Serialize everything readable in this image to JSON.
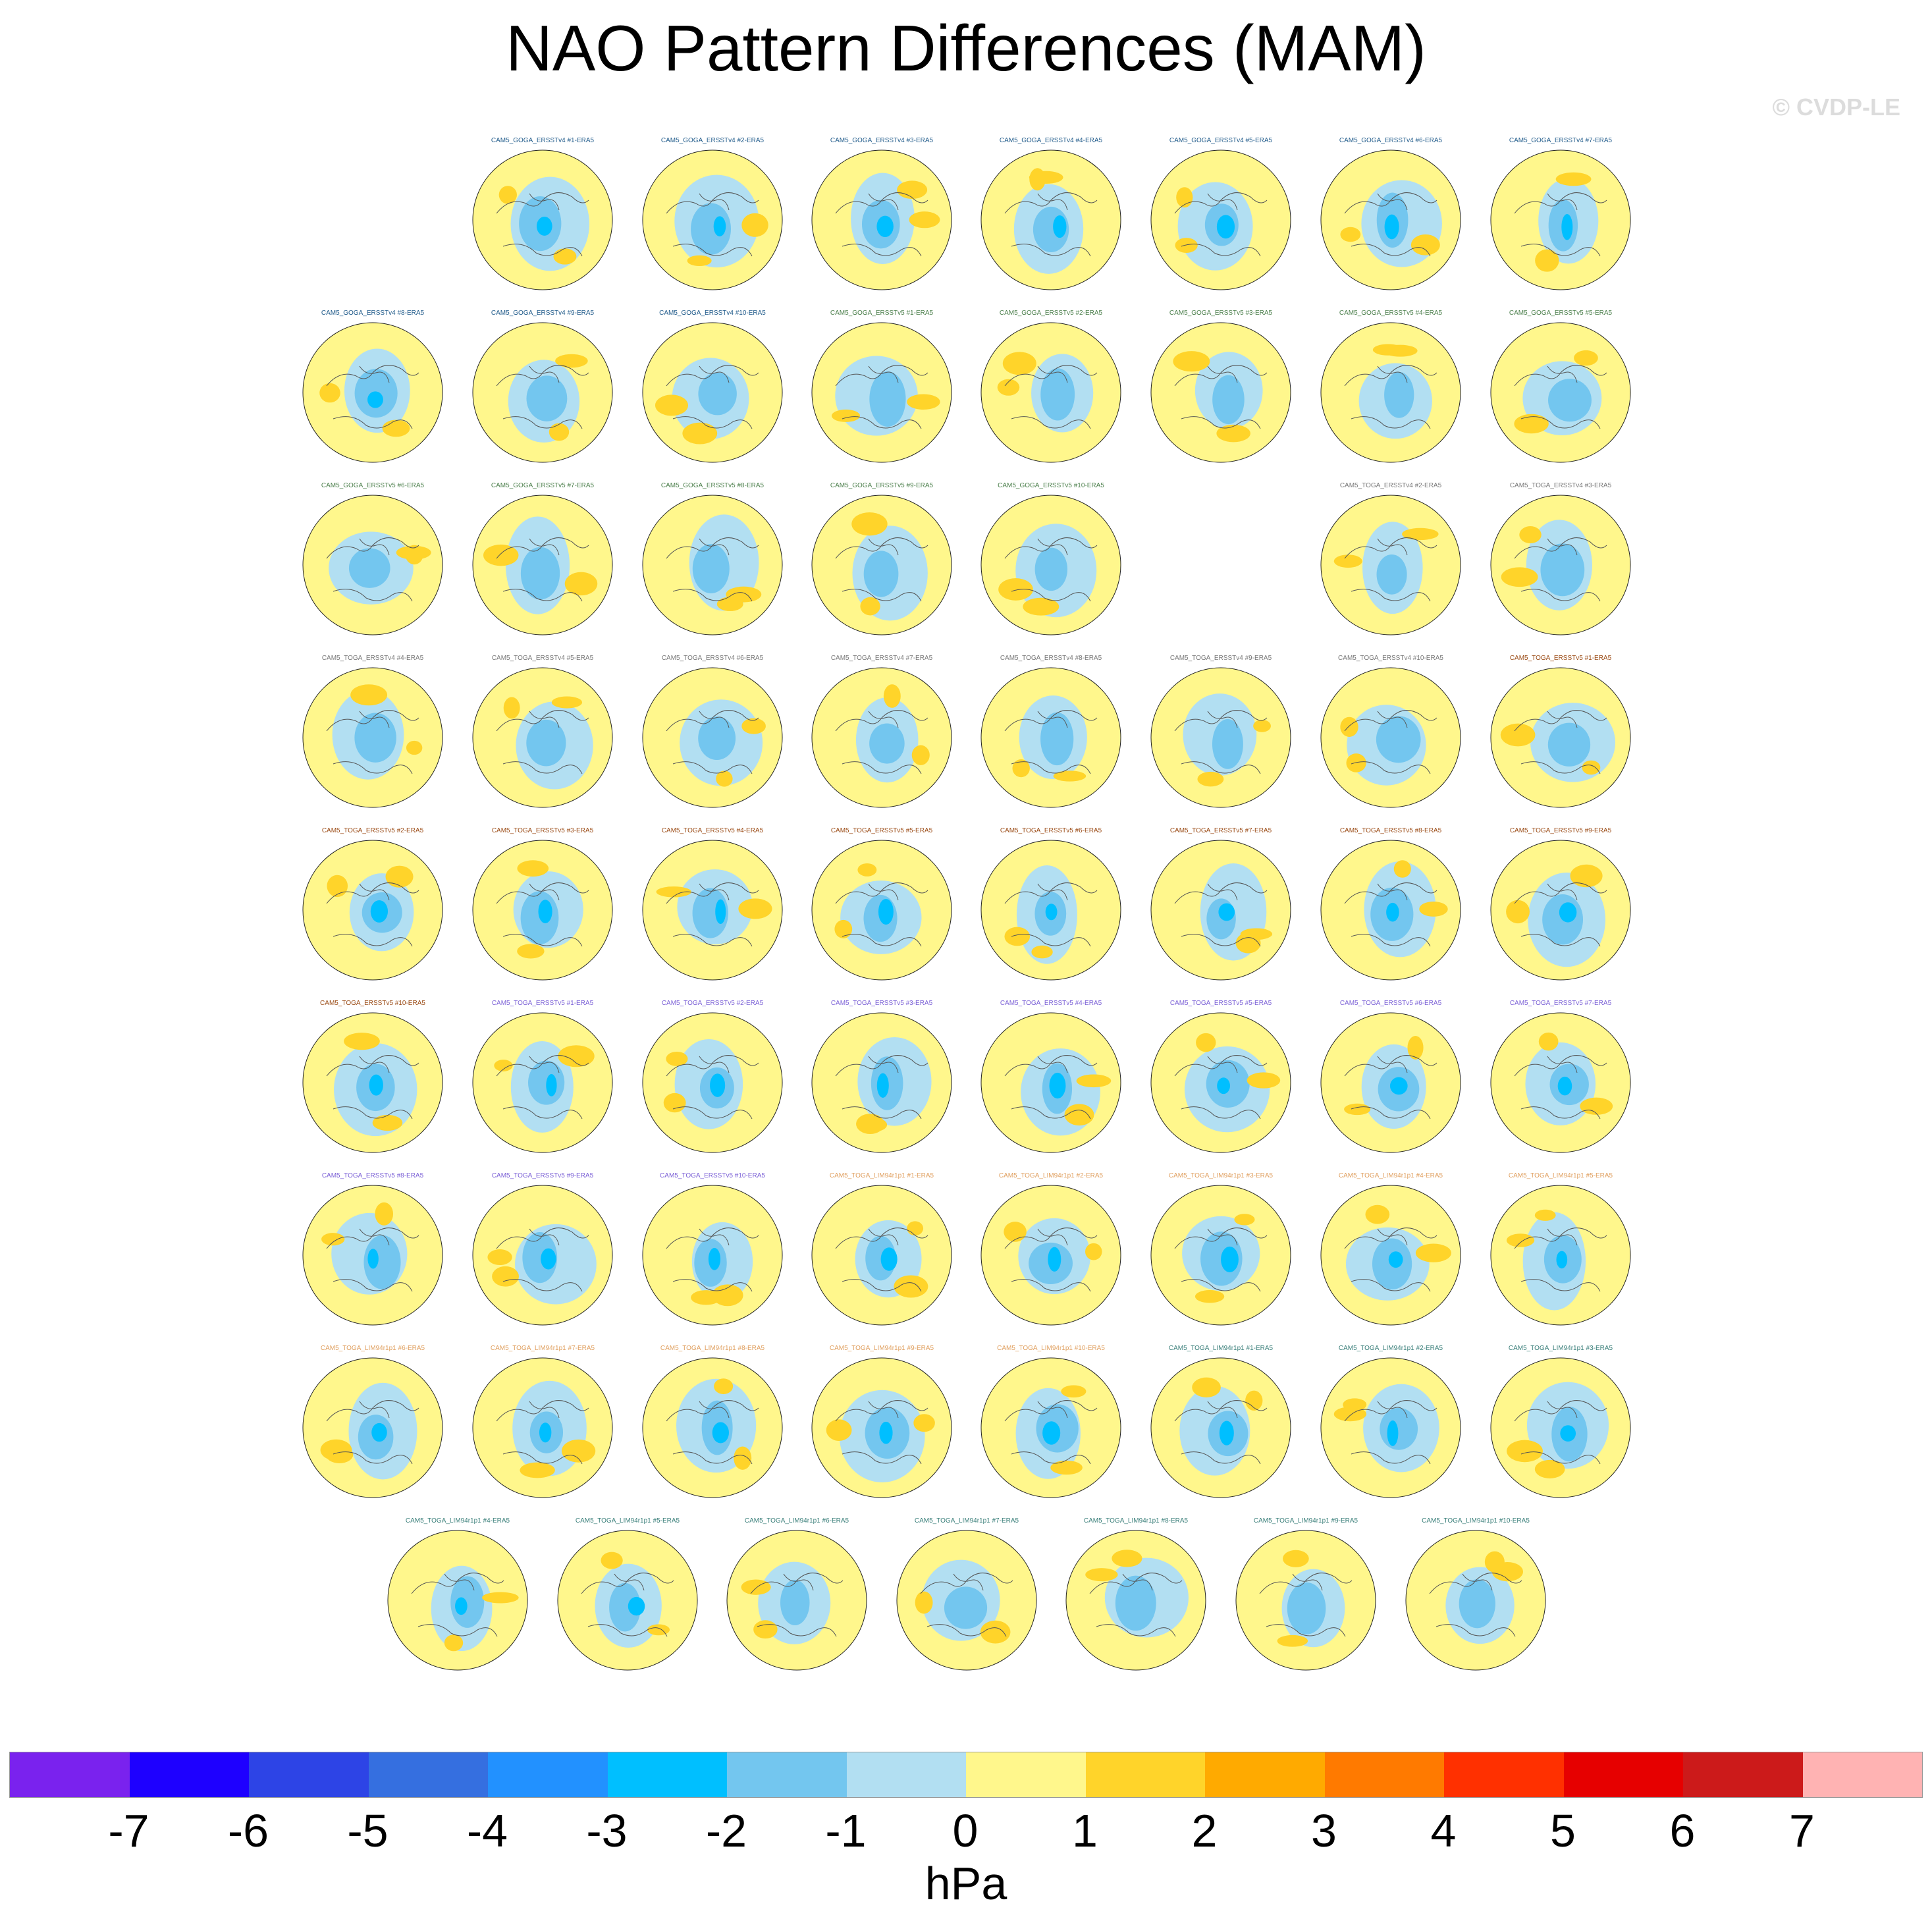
{
  "title": "NAO Pattern Differences (MAM)",
  "credit": "© CVDP-LE",
  "colors": {
    "group_goga_v4": "#1f5a8a",
    "group_goga_v5": "#4b7f4b",
    "group_toga_v4": "#777777",
    "group_toga_v5": "#9a4a14",
    "group_toga_v5_alt": "#7a5fd6",
    "group_lim_a": "#e0a060",
    "group_lim_b": "#3a7f7a",
    "map_fill": "#fff78c",
    "map_coast": "#555555"
  },
  "panels": [
    {
      "label": "CAM5_GOGA_ERSSTv4 #1-ERA5",
      "group": "group_goga_v4"
    },
    {
      "label": "CAM5_GOGA_ERSSTv4 #2-ERA5",
      "group": "group_goga_v4"
    },
    {
      "label": "CAM5_GOGA_ERSSTv4 #3-ERA5",
      "group": "group_goga_v4"
    },
    {
      "label": "CAM5_GOGA_ERSSTv4 #4-ERA5",
      "group": "group_goga_v4"
    },
    {
      "label": "CAM5_GOGA_ERSSTv4 #5-ERA5",
      "group": "group_goga_v4"
    },
    {
      "label": "CAM5_GOGA_ERSSTv4 #6-ERA5",
      "group": "group_goga_v4"
    },
    {
      "label": "CAM5_GOGA_ERSSTv4 #7-ERA5",
      "group": "group_goga_v4"
    },
    {
      "label": "CAM5_GOGA_ERSSTv4 #8-ERA5",
      "group": "group_goga_v4"
    },
    {
      "label": "CAM5_GOGA_ERSSTv4 #9-ERA5",
      "group": "group_goga_v4"
    },
    {
      "label": "CAM5_GOGA_ERSSTv4 #10-ERA5",
      "group": "group_goga_v4"
    },
    {
      "label": "CAM5_GOGA_ERSSTv5 #1-ERA5",
      "group": "group_goga_v5"
    },
    {
      "label": "CAM5_GOGA_ERSSTv5 #2-ERA5",
      "group": "group_goga_v5"
    },
    {
      "label": "CAM5_GOGA_ERSSTv5 #3-ERA5",
      "group": "group_goga_v5"
    },
    {
      "label": "CAM5_GOGA_ERSSTv5 #4-ERA5",
      "group": "group_goga_v5"
    },
    {
      "label": "CAM5_GOGA_ERSSTv5 #5-ERA5",
      "group": "group_goga_v5"
    },
    {
      "label": "CAM5_GOGA_ERSSTv5 #6-ERA5",
      "group": "group_goga_v5"
    },
    {
      "label": "CAM5_GOGA_ERSSTv5 #7-ERA5",
      "group": "group_goga_v5"
    },
    {
      "label": "CAM5_GOGA_ERSSTv5 #8-ERA5",
      "group": "group_goga_v5"
    },
    {
      "label": "CAM5_GOGA_ERSSTv5 #9-ERA5",
      "group": "group_goga_v5"
    },
    {
      "label": "CAM5_GOGA_ERSSTv5 #10-ERA5",
      "group": "group_goga_v5"
    },
    {
      "label": "CAM5_TOGA_ERSSTv4 #2-ERA5",
      "group": "group_toga_v4"
    },
    {
      "label": "CAM5_TOGA_ERSSTv4 #3-ERA5",
      "group": "group_toga_v4"
    },
    {
      "label": "CAM5_TOGA_ERSSTv4 #4-ERA5",
      "group": "group_toga_v4"
    },
    {
      "label": "CAM5_TOGA_ERSSTv4 #5-ERA5",
      "group": "group_toga_v4"
    },
    {
      "label": "CAM5_TOGA_ERSSTv4 #6-ERA5",
      "group": "group_toga_v4"
    },
    {
      "label": "CAM5_TOGA_ERSSTv4 #7-ERA5",
      "group": "group_toga_v4"
    },
    {
      "label": "CAM5_TOGA_ERSSTv4 #8-ERA5",
      "group": "group_toga_v4"
    },
    {
      "label": "CAM5_TOGA_ERSSTv4 #9-ERA5",
      "group": "group_toga_v4"
    },
    {
      "label": "CAM5_TOGA_ERSSTv4 #10-ERA5",
      "group": "group_toga_v4"
    },
    {
      "label": "CAM5_TOGA_ERSSTv5 #1-ERA5",
      "group": "group_toga_v5"
    },
    {
      "label": "CAM5_TOGA_ERSSTv5 #2-ERA5",
      "group": "group_toga_v5"
    },
    {
      "label": "CAM5_TOGA_ERSSTv5 #3-ERA5",
      "group": "group_toga_v5"
    },
    {
      "label": "CAM5_TOGA_ERSSTv5 #4-ERA5",
      "group": "group_toga_v5"
    },
    {
      "label": "CAM5_TOGA_ERSSTv5 #5-ERA5",
      "group": "group_toga_v5"
    },
    {
      "label": "CAM5_TOGA_ERSSTv5 #6-ERA5",
      "group": "group_toga_v5"
    },
    {
      "label": "CAM5_TOGA_ERSSTv5 #7-ERA5",
      "group": "group_toga_v5"
    },
    {
      "label": "CAM5_TOGA_ERSSTv5 #8-ERA5",
      "group": "group_toga_v5"
    },
    {
      "label": "CAM5_TOGA_ERSSTv5 #9-ERA5",
      "group": "group_toga_v5"
    },
    {
      "label": "CAM5_TOGA_ERSSTv5 #10-ERA5",
      "group": "group_toga_v5"
    },
    {
      "label": "CAM5_TOGA_ERSSTv5 #1-ERA5",
      "group": "group_toga_v5_alt"
    },
    {
      "label": "CAM5_TOGA_ERSSTv5 #2-ERA5",
      "group": "group_toga_v5_alt"
    },
    {
      "label": "CAM5_TOGA_ERSSTv5 #3-ERA5",
      "group": "group_toga_v5_alt"
    },
    {
      "label": "CAM5_TOGA_ERSSTv5 #4-ERA5",
      "group": "group_toga_v5_alt"
    },
    {
      "label": "CAM5_TOGA_ERSSTv5 #5-ERA5",
      "group": "group_toga_v5_alt"
    },
    {
      "label": "CAM5_TOGA_ERSSTv5 #6-ERA5",
      "group": "group_toga_v5_alt"
    },
    {
      "label": "CAM5_TOGA_ERSSTv5 #7-ERA5",
      "group": "group_toga_v5_alt"
    },
    {
      "label": "CAM5_TOGA_ERSSTv5 #8-ERA5",
      "group": "group_toga_v5_alt"
    },
    {
      "label": "CAM5_TOGA_ERSSTv5 #9-ERA5",
      "group": "group_toga_v5_alt"
    },
    {
      "label": "CAM5_TOGA_ERSSTv5 #10-ERA5",
      "group": "group_toga_v5_alt"
    },
    {
      "label": "CAM5_TOGA_LIM94r1p1 #1-ERA5",
      "group": "group_lim_a"
    },
    {
      "label": "CAM5_TOGA_LIM94r1p1 #2-ERA5",
      "group": "group_lim_a"
    },
    {
      "label": "CAM5_TOGA_LIM94r1p1 #3-ERA5",
      "group": "group_lim_a"
    },
    {
      "label": "CAM5_TOGA_LIM94r1p1 #4-ERA5",
      "group": "group_lim_a"
    },
    {
      "label": "CAM5_TOGA_LIM94r1p1 #5-ERA5",
      "group": "group_lim_a"
    },
    {
      "label": "CAM5_TOGA_LIM94r1p1 #6-ERA5",
      "group": "group_lim_a"
    },
    {
      "label": "CAM5_TOGA_LIM94r1p1 #7-ERA5",
      "group": "group_lim_a"
    },
    {
      "label": "CAM5_TOGA_LIM94r1p1 #8-ERA5",
      "group": "group_lim_a"
    },
    {
      "label": "CAM5_TOGA_LIM94r1p1 #9-ERA5",
      "group": "group_lim_a"
    },
    {
      "label": "CAM5_TOGA_LIM94r1p1 #10-ERA5",
      "group": "group_lim_a"
    },
    {
      "label": "CAM5_TOGA_LIM94r1p1 #1-ERA5",
      "group": "group_lim_b"
    },
    {
      "label": "CAM5_TOGA_LIM94r1p1 #2-ERA5",
      "group": "group_lim_b"
    },
    {
      "label": "CAM5_TOGA_LIM94r1p1 #3-ERA5",
      "group": "group_lim_b"
    },
    {
      "label": "CAM5_TOGA_LIM94r1p1 #4-ERA5",
      "group": "group_lim_b"
    },
    {
      "label": "CAM5_TOGA_LIM94r1p1 #5-ERA5",
      "group": "group_lim_b"
    },
    {
      "label": "CAM5_TOGA_LIM94r1p1 #6-ERA5",
      "group": "group_lim_b"
    },
    {
      "label": "CAM5_TOGA_LIM94r1p1 #7-ERA5",
      "group": "group_lim_b"
    },
    {
      "label": "CAM5_TOGA_LIM94r1p1 #8-ERA5",
      "group": "group_lim_b"
    },
    {
      "label": "CAM5_TOGA_LIM94r1p1 #9-ERA5",
      "group": "group_lim_b"
    },
    {
      "label": "CAM5_TOGA_LIM94r1p1 #10-ERA5",
      "group": "group_lim_b"
    }
  ],
  "colorbar": {
    "units": "hPa",
    "colors": [
      "#7a22ee",
      "#1e00ff",
      "#2d44e6",
      "#356fe0",
      "#2291ff",
      "#00bfff",
      "#73c6ef",
      "#b2dff2",
      "#fff78c",
      "#ffd42a",
      "#ffaa00",
      "#ff7a00",
      "#ff3000",
      "#e60000",
      "#cc1a1a",
      "#ffb3b3"
    ],
    "ticks": [
      "-7",
      "-6",
      "-5",
      "-4",
      "-3",
      "-2",
      "-1",
      "0",
      "1",
      "2",
      "3",
      "4",
      "5",
      "6",
      "7"
    ]
  }
}
